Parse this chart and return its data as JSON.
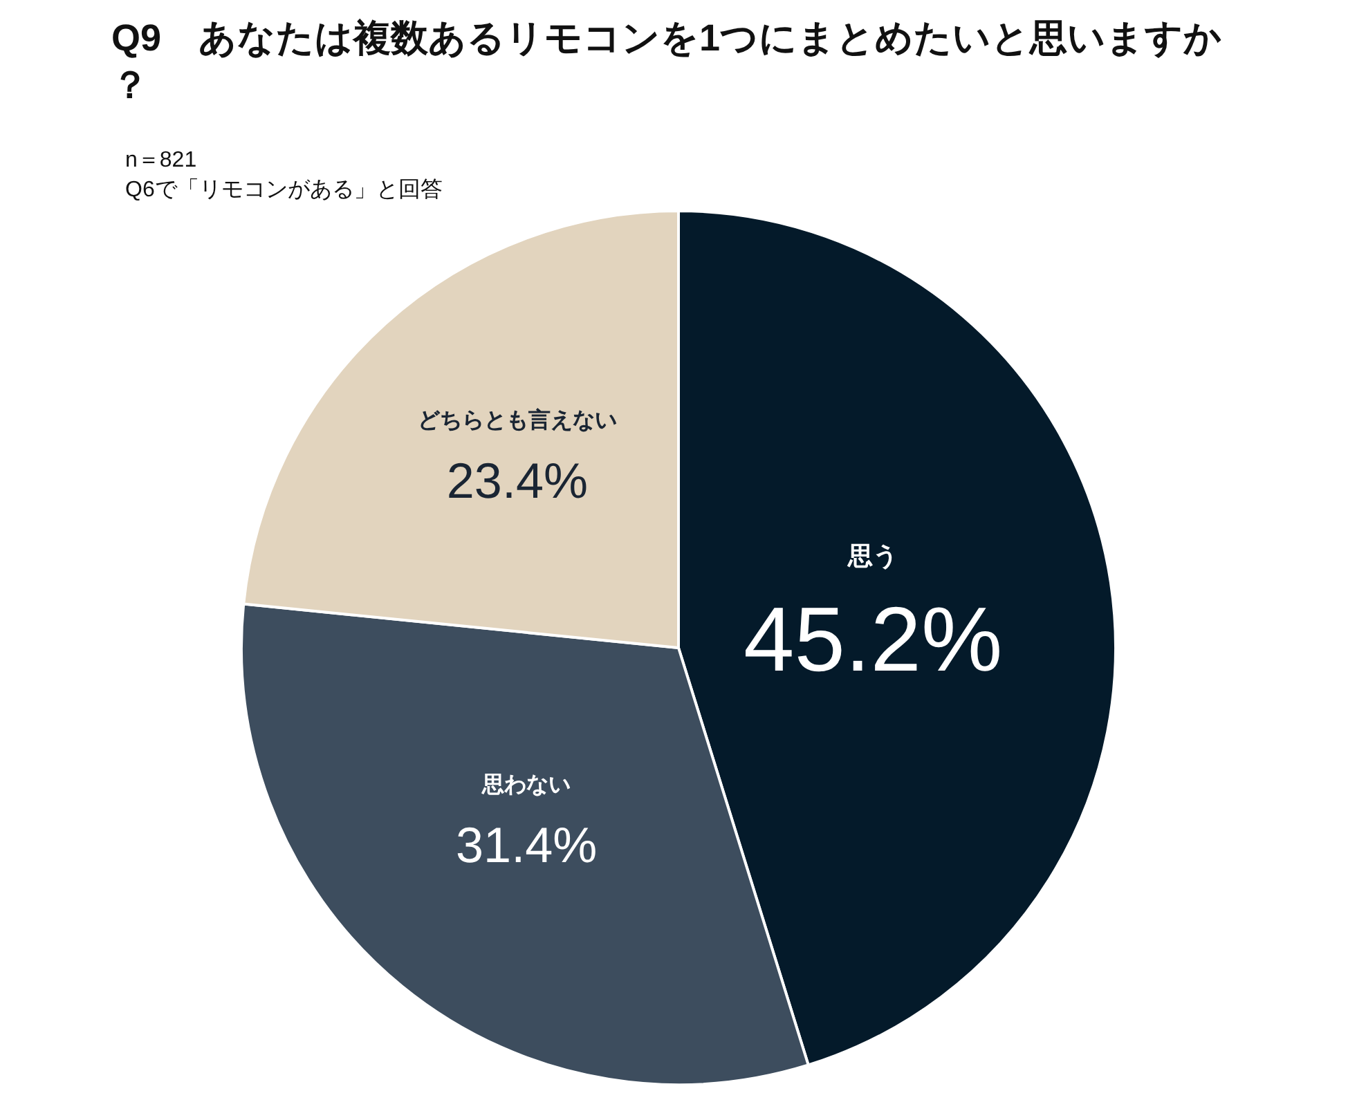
{
  "chart_data": {
    "type": "pie",
    "title": "Q9　あなたは複数あるリモコンを1つにまとめたいと思いますか？",
    "subtitle": "n＝821\nQ6で「リモコンがある」と回答",
    "categories": [
      "思う",
      "思わない",
      "どちらとも言えない"
    ],
    "values": [
      45.2,
      31.4,
      23.4
    ],
    "colors": [
      "#041a2a",
      "#3d4d5e",
      "#e2d4be"
    ],
    "value_labels": [
      "45.2%",
      "31.4%",
      "23.4%"
    ],
    "legend": false
  }
}
